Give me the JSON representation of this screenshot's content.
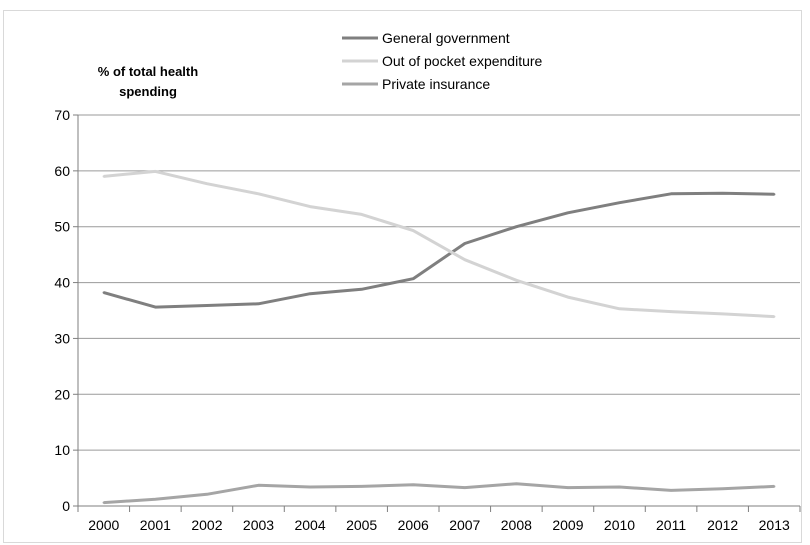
{
  "chart_data": {
    "type": "line",
    "title": "",
    "xlabel": "",
    "ylabel_line1": "% of total health",
    "ylabel_line2": "spending",
    "ylim": [
      0,
      70
    ],
    "y_ticks": [
      0,
      10,
      20,
      30,
      40,
      50,
      60,
      70
    ],
    "grid": true,
    "legend_position": "top-center",
    "categories": [
      "2000",
      "2001",
      "2002",
      "2003",
      "2004",
      "2005",
      "2006",
      "2007",
      "2008",
      "2009",
      "2010",
      "2011",
      "2012",
      "2013"
    ],
    "series": [
      {
        "name": "General government",
        "color": "#7f7f7f",
        "values": [
          38.2,
          35.6,
          35.9,
          36.2,
          38.0,
          38.8,
          40.7,
          47.0,
          50.0,
          52.5,
          54.3,
          55.9,
          56.0,
          55.8
        ]
      },
      {
        "name": "Out of pocket expenditure",
        "color": "#d3d3d3",
        "values": [
          59.0,
          59.9,
          57.7,
          55.9,
          53.6,
          52.2,
          49.3,
          44.1,
          40.4,
          37.4,
          35.3,
          34.8,
          34.4,
          33.9
        ]
      },
      {
        "name": "Private insurance",
        "color": "#a5a5a5",
        "values": [
          0.6,
          1.2,
          2.1,
          3.7,
          3.4,
          3.5,
          3.8,
          3.3,
          4.0,
          3.3,
          3.4,
          2.8,
          3.1,
          3.5
        ]
      }
    ]
  }
}
